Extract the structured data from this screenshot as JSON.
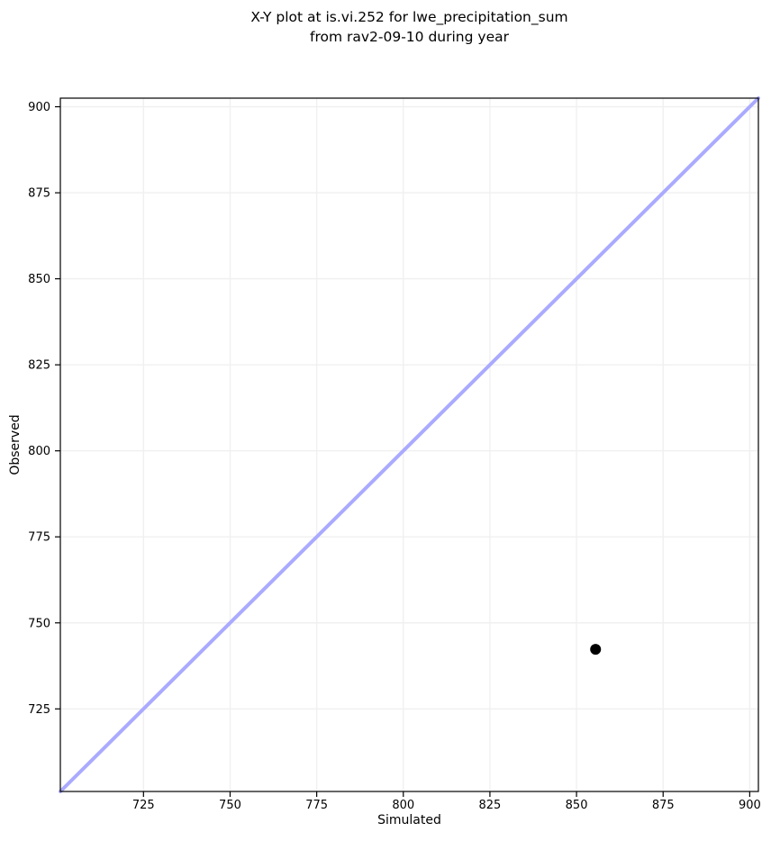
{
  "chart_data": {
    "type": "scatter",
    "title": "X-Y plot at is.vi.252 for lwe_precipitation_sum\nfrom rav2-09-10 during year",
    "title_lines": [
      "X-Y plot at is.vi.252 for lwe_precipitation_sum",
      "from rav2-09-10 during year"
    ],
    "xlabel": "Simulated",
    "ylabel": "Observed",
    "xlim": [
      701,
      902.5
    ],
    "ylim": [
      701,
      902.5
    ],
    "xticks": [
      725,
      750,
      775,
      800,
      825,
      850,
      875,
      900
    ],
    "yticks": [
      725,
      750,
      775,
      800,
      825,
      850,
      875,
      900
    ],
    "grid": true,
    "legend": "none",
    "series": [
      {
        "name": "identity-line",
        "type": "line",
        "x": [
          701,
          902.5
        ],
        "y": [
          701,
          902.5
        ],
        "color": "#aaaaff",
        "width": 4
      },
      {
        "name": "observations",
        "type": "scatter",
        "points": [
          {
            "x": 855.5,
            "y": 742.3
          }
        ],
        "color": "#000000",
        "radius": 6
      }
    ],
    "colors": {
      "grid": "#f0f0f0",
      "spine": "#000000",
      "background": "#ffffff",
      "tick_label": "#000000"
    }
  }
}
